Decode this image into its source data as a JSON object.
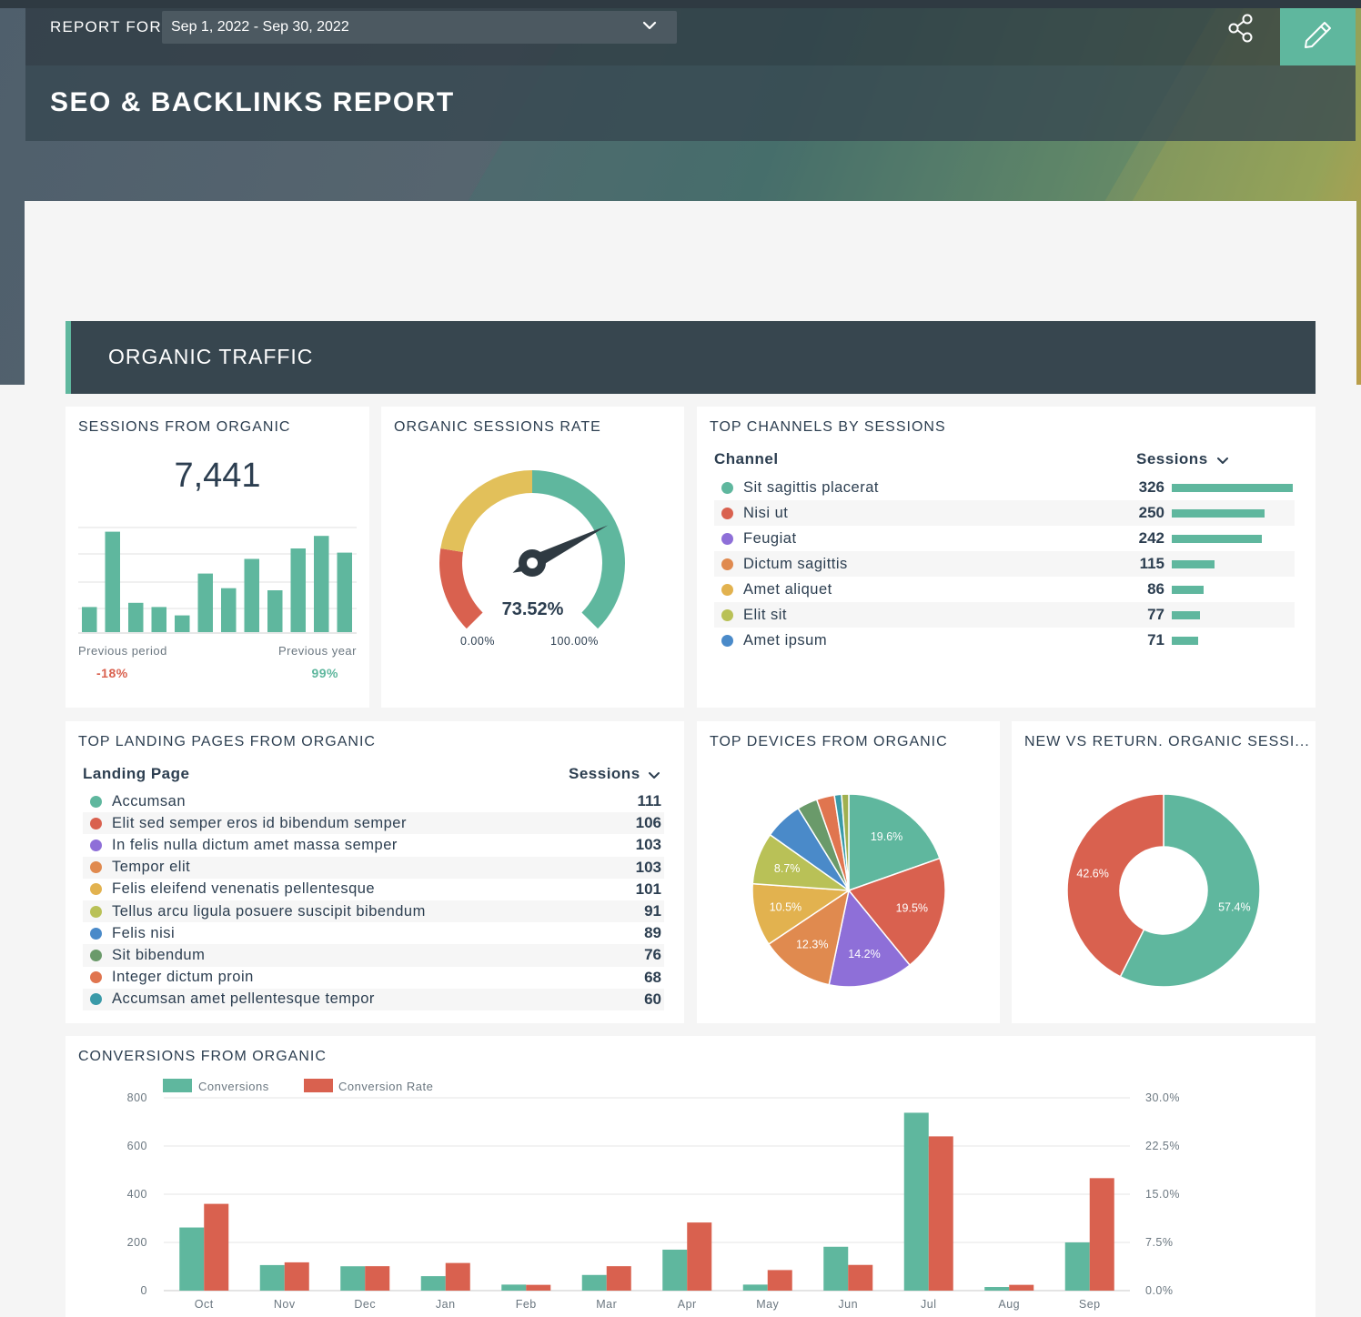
{
  "header": {
    "report_for_label": "REPORT FOR",
    "date_range": "Sep 1, 2022 - Sep 30, 2022",
    "title": "SEO & BACKLINKS REPORT",
    "accent_color": "#5fb79e"
  },
  "section": {
    "title": "ORGANIC TRAFFIC"
  },
  "sessions_card": {
    "title": "SESSIONS FROM ORGANIC",
    "value": "7,441",
    "previous_period_label": "Previous period",
    "previous_period_value": "-18%",
    "previous_year_label": "Previous year",
    "previous_year_value": "99%",
    "sparkline": [
      12,
      48,
      14,
      12,
      8,
      28,
      21,
      35,
      20,
      40,
      46,
      38
    ]
  },
  "rate_card": {
    "title": "ORGANIC SESSIONS RATE",
    "value": "73.52%",
    "min_label": "0.00%",
    "max_label": "100.00%",
    "rate": 0.7352
  },
  "channels_card": {
    "title": "TOP CHANNELS BY SESSIONS",
    "col_channel": "Channel",
    "col_sessions": "Sessions",
    "rows": [
      {
        "label": "Sit sagittis placerat",
        "value": "326",
        "n": 326,
        "color": "#5fb79e"
      },
      {
        "label": "Nisi ut",
        "value": "250",
        "n": 250,
        "color": "#d9614f"
      },
      {
        "label": "Feugiat",
        "value": "242",
        "n": 242,
        "color": "#8e6fd8"
      },
      {
        "label": "Dictum sagittis",
        "value": "115",
        "n": 115,
        "color": "#e08a4f"
      },
      {
        "label": "Amet aliquet",
        "value": "86",
        "n": 86,
        "color": "#e2b24f"
      },
      {
        "label": "Elit sit",
        "value": "77",
        "n": 77,
        "color": "#b9c157"
      },
      {
        "label": "Amet ipsum",
        "value": "71",
        "n": 71,
        "color": "#4a8ac9"
      }
    ]
  },
  "landing_card": {
    "title": "TOP LANDING PAGES FROM ORGANIC",
    "col_page": "Landing Page",
    "col_sessions": "Sessions",
    "rows": [
      {
        "label": "Accumsan",
        "value": "111",
        "color": "#5fb79e"
      },
      {
        "label": "Elit sed semper eros id bibendum semper",
        "value": "106",
        "color": "#d9614f"
      },
      {
        "label": "In felis nulla dictum amet massa semper",
        "value": "103",
        "color": "#8e6fd8"
      },
      {
        "label": "Tempor elit",
        "value": "103",
        "color": "#e08a4f"
      },
      {
        "label": "Felis eleifend venenatis pellentesque",
        "value": "101",
        "color": "#e2b24f"
      },
      {
        "label": "Tellus arcu ligula posuere suscipit bibendum",
        "value": "91",
        "color": "#b9c157"
      },
      {
        "label": "Felis nisi",
        "value": "89",
        "color": "#4a8ac9"
      },
      {
        "label": "Sit bibendum",
        "value": "76",
        "color": "#6a9a6a"
      },
      {
        "label": "Integer dictum proin",
        "value": "68",
        "color": "#e0754f"
      },
      {
        "label": "Accumsan amet pellentesque tempor",
        "value": "60",
        "color": "#3a9aa8"
      }
    ]
  },
  "devices_card": {
    "title": "TOP DEVICES FROM ORGANIC",
    "slices": [
      {
        "value": 19.6,
        "label": "19.6%",
        "color": "#5fb79e"
      },
      {
        "value": 19.5,
        "label": "19.5%",
        "color": "#d9614f"
      },
      {
        "value": 14.2,
        "label": "14.2%",
        "color": "#8e6fd8"
      },
      {
        "value": 12.3,
        "label": "12.3%",
        "color": "#e08a4f"
      },
      {
        "value": 10.5,
        "label": "10.5%",
        "color": "#e2b24f"
      },
      {
        "value": 8.7,
        "label": "8.7%",
        "color": "#b9c157"
      },
      {
        "value": 6.4,
        "label": "",
        "color": "#4a8ac9"
      },
      {
        "value": 3.4,
        "label": "",
        "color": "#6a9a6a"
      },
      {
        "value": 3.0,
        "label": "",
        "color": "#e0754f"
      },
      {
        "value": 1.2,
        "label": "",
        "color": "#3a9aa8"
      },
      {
        "value": 1.2,
        "label": "",
        "color": "#a0b050"
      }
    ]
  },
  "newret_card": {
    "title": "NEW VS RETURN. ORGANIC SESSI...",
    "slices": [
      {
        "value": 57.4,
        "label": "57.4%",
        "color": "#5fb79e"
      },
      {
        "value": 42.6,
        "label": "42.6%",
        "color": "#d9614f"
      }
    ]
  },
  "chart_data": {
    "type": "bar",
    "title": "CONVERSIONS FROM ORGANIC",
    "categories": [
      "Oct",
      "Nov",
      "Dec",
      "Jan",
      "Feb",
      "Mar",
      "Apr",
      "May",
      "Jun",
      "Jul",
      "Aug",
      "Sep"
    ],
    "series": [
      {
        "name": "Conversions",
        "color": "#5fb79e",
        "axis": "left",
        "values": [
          262,
          106,
          101,
          60,
          25,
          65,
          170,
          25,
          182,
          738,
          15,
          200
        ]
      },
      {
        "name": "Conversion Rate",
        "color": "#d9614f",
        "axis": "right",
        "values": [
          13.5,
          4.4,
          3.8,
          4.3,
          0.9,
          3.8,
          10.6,
          3.2,
          4.0,
          24.0,
          0.9,
          17.5
        ]
      }
    ],
    "y_left": {
      "min": 0,
      "max": 800,
      "ticks": [
        "0",
        "200",
        "400",
        "600",
        "800"
      ]
    },
    "y_right": {
      "min": 0,
      "max": 30,
      "ticks": [
        "0.0%",
        "7.5%",
        "15.0%",
        "22.5%",
        "30.0%"
      ]
    },
    "grid": true,
    "legend": "top-left"
  }
}
